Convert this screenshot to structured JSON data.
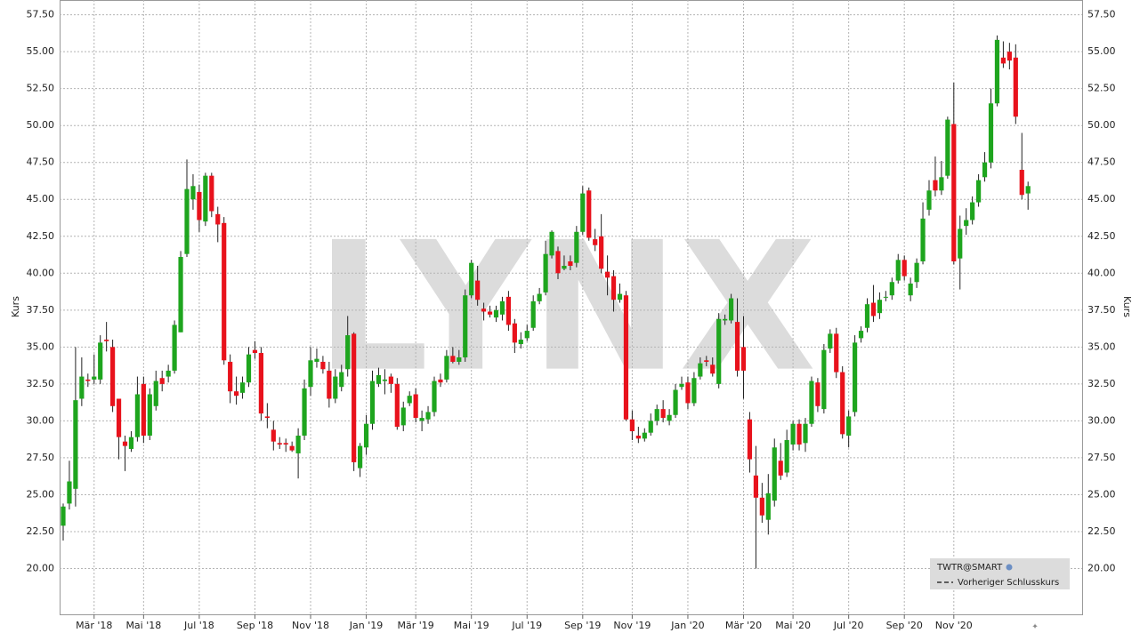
{
  "chart_data": {
    "type": "candlestick",
    "watermark": "LYNX",
    "y_label": "Kurs",
    "categories": [
      null,
      null,
      null,
      null,
      null,
      "Mär '18",
      null,
      null,
      null,
      null,
      null,
      null,
      null,
      "Mai '18",
      null,
      null,
      null,
      null,
      null,
      null,
      null,
      null,
      "Jul '18",
      null,
      null,
      null,
      null,
      null,
      null,
      null,
      null,
      "Sep '18",
      null,
      null,
      null,
      null,
      null,
      null,
      null,
      null,
      "Nov '18",
      null,
      null,
      null,
      null,
      null,
      null,
      null,
      null,
      "Jan '19",
      null,
      null,
      null,
      null,
      null,
      null,
      null,
      "Mär '19",
      null,
      null,
      null,
      null,
      null,
      null,
      null,
      null,
      "Mai '19",
      null,
      null,
      null,
      null,
      null,
      null,
      null,
      null,
      "Jul '19",
      null,
      null,
      null,
      null,
      null,
      null,
      null,
      null,
      "Sep '19",
      null,
      null,
      null,
      null,
      null,
      null,
      null,
      "Nov '19",
      null,
      null,
      null,
      null,
      null,
      null,
      null,
      null,
      "Jan '20",
      null,
      null,
      null,
      null,
      null,
      null,
      null,
      null,
      "Mär '20",
      null,
      null,
      null,
      null,
      null,
      null,
      null,
      "Mai '20",
      null,
      null,
      null,
      null,
      null,
      null,
      null,
      null,
      "Jul '20",
      null,
      null,
      null,
      null,
      null,
      null,
      null,
      null,
      "Sep '20",
      null,
      null,
      null,
      null,
      null,
      null,
      null,
      "Nov '20",
      null,
      null,
      null,
      null,
      null,
      null,
      null,
      null,
      null,
      null,
      null,
      null
    ],
    "series": [
      {
        "name": "TWTR@SMART",
        "up_color": "#1ea51e",
        "down_color": "#e8121c",
        "open": [
          22.9,
          24.4,
          25.4,
          31.5,
          32.8,
          32.8,
          32.8,
          35.5,
          35,
          31.5,
          28.6,
          28.1,
          28.9,
          32.5,
          29,
          31,
          32.9,
          33,
          33.4,
          36,
          41.3,
          45,
          45.5,
          43.5,
          46.6,
          44,
          43.4,
          34,
          32,
          31.9,
          32.6,
          34.8,
          34.6,
          30.3,
          29.4,
          28.5,
          28.5,
          28.3,
          27.8,
          29,
          32.3,
          34,
          34,
          33.4,
          31.5,
          32.3,
          33.5,
          35.9,
          26.8,
          28.2,
          29.8,
          32.5,
          32.7,
          33,
          32.5,
          29.7,
          31.2,
          31.8,
          30,
          30.1,
          30.6,
          32.8,
          32.8,
          34.4,
          34,
          34.3,
          38.5,
          39.5,
          37.6,
          37.4,
          37,
          37.2,
          38.4,
          36.6,
          35.2,
          35.6,
          36.3,
          38.1,
          38.7,
          41.2,
          41.5,
          40.3,
          40.8,
          40.7,
          42.8,
          45.6,
          42.3,
          42.5,
          40.1,
          39.8,
          38.2,
          38.5,
          30.1,
          29,
          28.8,
          29.2,
          30,
          30.8,
          30,
          30.4,
          32.3,
          32.6,
          31.2,
          33,
          34.1,
          33.8,
          32.5,
          36.8,
          36.8,
          36.7,
          35,
          30.1,
          26.3,
          24.8,
          23.3,
          24.6,
          27.3,
          26.5,
          28.4,
          29.8,
          28.5,
          29.8,
          32.6,
          30.8,
          34.9,
          35.9,
          33.3,
          29,
          30.6,
          35.6,
          36.3,
          38,
          37.3,
          38.4,
          38.5,
          39.5,
          40.9,
          38.5,
          39.4,
          40.8,
          44.3,
          46.3,
          45.6,
          46.6,
          50.1,
          41,
          43.2,
          43.6,
          44.8,
          46.5,
          47.5,
          51.5,
          54.6,
          55,
          54.6,
          47,
          45.4
        ],
        "high": [
          24.4,
          27.3,
          35,
          34.3,
          33.2,
          34.5,
          35.8,
          36.7,
          35.5,
          31.5,
          29,
          29.3,
          33,
          33,
          32.2,
          33.4,
          33.4,
          33.8,
          36.8,
          41.5,
          47.7,
          46.7,
          46,
          46.8,
          46.8,
          44.5,
          43.8,
          34.5,
          33,
          33,
          35,
          35.4,
          35,
          31.2,
          30,
          28.9,
          28.8,
          28.6,
          29.5,
          32.8,
          35,
          34.9,
          34.4,
          34,
          33.5,
          33.8,
          37.1,
          36,
          28.5,
          30.4,
          33.4,
          33.6,
          33.5,
          33.2,
          32.9,
          31.3,
          32,
          32.2,
          30.7,
          31,
          33,
          33.2,
          34.8,
          35,
          34.8,
          38.9,
          40.9,
          40.5,
          38,
          37.8,
          37.8,
          38.4,
          38.8,
          36.9,
          36,
          36.5,
          38.5,
          39,
          42.2,
          42.9,
          41.8,
          41.2,
          41.2,
          43.2,
          45.9,
          45.8,
          43,
          44,
          41.2,
          40.2,
          39.3,
          38.8,
          30.7,
          29.6,
          29.5,
          30.5,
          31.1,
          31.4,
          30.8,
          32.5,
          33,
          33,
          33.3,
          34.3,
          34.4,
          34.3,
          37.3,
          37.2,
          38.6,
          38.3,
          37.1,
          30.6,
          28.3,
          25.8,
          26.4,
          28.8,
          28.5,
          29.4,
          30,
          30.1,
          30.2,
          33,
          32.9,
          35.2,
          36.2,
          36.3,
          33.7,
          30.7,
          35.8,
          36.4,
          38.3,
          39.2,
          38.7,
          38.8,
          39.7,
          41.3,
          41.2,
          39.7,
          41,
          44.8,
          46.3,
          47.9,
          47.6,
          50.6,
          52.9,
          43.9,
          44.4,
          45.2,
          46.7,
          48.2,
          52.5,
          56.1,
          55.7,
          55.6,
          55.5,
          49.5,
          46.2
        ],
        "low": [
          21.9,
          24,
          24.2,
          31,
          32.3,
          32.5,
          32.5,
          34.7,
          30.6,
          27.4,
          26.6,
          27.9,
          28.6,
          28.5,
          28.7,
          30.7,
          32,
          32.6,
          33.2,
          36,
          41.1,
          44.3,
          42.8,
          43.2,
          43.8,
          42.1,
          33.8,
          31.2,
          31.1,
          31.5,
          32.3,
          34.2,
          30,
          29.5,
          28,
          28.1,
          27.9,
          27.9,
          26.1,
          28.7,
          31.7,
          33.6,
          33.2,
          30.9,
          31.2,
          32,
          33,
          26.6,
          26.2,
          27.7,
          29.4,
          32.3,
          31.8,
          31.9,
          29.4,
          29.3,
          31,
          29.9,
          29.3,
          29.8,
          30.3,
          32.3,
          32.6,
          33.9,
          33.8,
          34,
          38.3,
          37.8,
          36.8,
          37,
          36.7,
          36.8,
          36.1,
          34.6,
          34.9,
          35.4,
          36.1,
          37.9,
          38.5,
          41,
          39.6,
          40.2,
          40.2,
          40.4,
          42.6,
          42.2,
          41.5,
          40,
          38.5,
          37.4,
          38,
          30,
          28.7,
          28.5,
          28.6,
          29,
          29.7,
          29.9,
          29.7,
          30.2,
          32.1,
          30.8,
          31,
          32.8,
          33.7,
          33,
          32.2,
          36.5,
          36.6,
          33,
          31.5,
          26.5,
          20,
          23.1,
          22.3,
          24.2,
          26,
          26.2,
          28,
          28,
          27.9,
          29.6,
          30.6,
          30.5,
          34.6,
          32.9,
          28.8,
          28.2,
          30.3,
          35.3,
          36,
          36.7,
          36.9,
          38.1,
          38.2,
          39.3,
          39.5,
          38.1,
          39,
          40.6,
          43.9,
          45.2,
          45.3,
          46.4,
          40.6,
          38.9,
          42.6,
          43.3,
          44.5,
          46.2,
          47.1,
          51.3,
          53.9,
          53.8,
          50.1,
          45,
          44.3
        ],
        "close": [
          24.2,
          25.9,
          31.4,
          33,
          32.7,
          33,
          35.3,
          35.4,
          31,
          28.9,
          28.3,
          28.9,
          31.8,
          29,
          31.8,
          32.7,
          32.5,
          33.4,
          36.5,
          41.1,
          45.7,
          45.9,
          43.6,
          46.6,
          44.2,
          43.3,
          34.1,
          32,
          31.7,
          32.6,
          34.5,
          34.6,
          30.5,
          30.2,
          28.6,
          28.4,
          28.4,
          28,
          29,
          32.2,
          34.1,
          34.2,
          33.5,
          31.5,
          33,
          33.3,
          35.8,
          27.2,
          28.3,
          29.8,
          32.7,
          33.1,
          32.8,
          32.5,
          29.6,
          30.9,
          31.7,
          30.2,
          30.2,
          30.6,
          32.7,
          32.6,
          34.4,
          34,
          34.3,
          38.5,
          40.7,
          38.2,
          37.4,
          37.2,
          37.5,
          38.1,
          36.5,
          35.3,
          35.5,
          36.1,
          38.1,
          38.6,
          41.3,
          42.8,
          40,
          40.5,
          40.5,
          42.8,
          45.4,
          42.4,
          41.9,
          40.3,
          39.7,
          38.2,
          38.6,
          30.1,
          29.3,
          28.8,
          29.2,
          30,
          30.8,
          30.2,
          30.4,
          32.1,
          32.5,
          31.2,
          32.9,
          33.9,
          34,
          33.2,
          36.9,
          36.9,
          38.3,
          33.4,
          33.4,
          27.4,
          24.8,
          23.6,
          25.1,
          28.2,
          26.3,
          28.7,
          29.8,
          28.4,
          29.8,
          32.7,
          31,
          34.8,
          35.9,
          33.3,
          29.1,
          30.3,
          35.3,
          36.1,
          37.9,
          37.1,
          38.2,
          38.4,
          39.4,
          40.9,
          39.8,
          39.3,
          40.7,
          43.7,
          45.6,
          45.6,
          46.5,
          50.4,
          40.8,
          43,
          43.6,
          44.8,
          46.3,
          47.5,
          51.5,
          55.8,
          54.2,
          54.4,
          50.6,
          45.3,
          45.9
        ]
      }
    ],
    "reference_line": {
      "name": "Vorheriger Schlusskurs"
    },
    "ylim": [
      16.9,
      58.5
    ],
    "yticks": [
      {
        "value": 20,
        "label": "20.00"
      },
      {
        "value": 22.5,
        "label": "22.50"
      },
      {
        "value": 25,
        "label": "25.00"
      },
      {
        "value": 27.5,
        "label": "27.50"
      },
      {
        "value": 30,
        "label": "30.00"
      },
      {
        "value": 32.5,
        "label": "32.50"
      },
      {
        "value": 35,
        "label": "35.00"
      },
      {
        "value": 37.5,
        "label": "37.50"
      },
      {
        "value": 40,
        "label": "40.00"
      },
      {
        "value": 42.5,
        "label": "42.50"
      },
      {
        "value": 45,
        "label": "45.00"
      },
      {
        "value": 47.5,
        "label": "47.50"
      },
      {
        "value": 50,
        "label": "50.00"
      },
      {
        "value": 52.5,
        "label": "52.50"
      },
      {
        "value": 55,
        "label": "55.00"
      },
      {
        "value": 57.5,
        "label": "57.50"
      }
    ],
    "grid": true
  }
}
